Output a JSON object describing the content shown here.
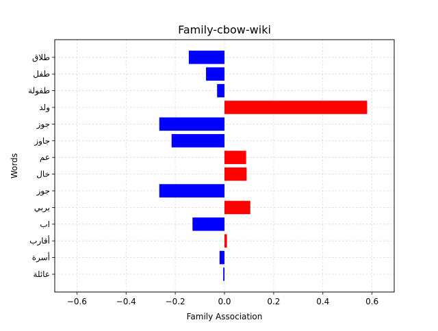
{
  "chart_data": {
    "type": "bar",
    "orientation": "horizontal",
    "title": "Family-cbow-wiki",
    "xlabel": "Family Association",
    "ylabel": "Words",
    "xlim": [
      -0.69,
      0.69
    ],
    "xticks": [
      -0.6,
      -0.4,
      -0.2,
      0.0,
      0.2,
      0.4,
      0.6
    ],
    "xtick_labels": [
      "−0.6",
      "−0.4",
      "−0.2",
      "0.0",
      "0.2",
      "0.4",
      "0.6"
    ],
    "grid": true,
    "legend": "none",
    "colors": {
      "positive": "#ff0000",
      "negative": "#0000ff"
    },
    "categories": [
      "عائلة",
      "أسرة",
      "أقارب",
      "اب",
      "يربي",
      "جوز",
      "خال",
      "عم",
      "جاوز",
      "جوز",
      "ولد",
      "طفولة",
      "طفل",
      "طلاق"
    ],
    "values": [
      -0.005,
      -0.02,
      0.01,
      -0.13,
      0.105,
      -0.265,
      0.09,
      0.088,
      -0.215,
      -0.265,
      0.58,
      -0.03,
      -0.075,
      -0.145
    ]
  }
}
